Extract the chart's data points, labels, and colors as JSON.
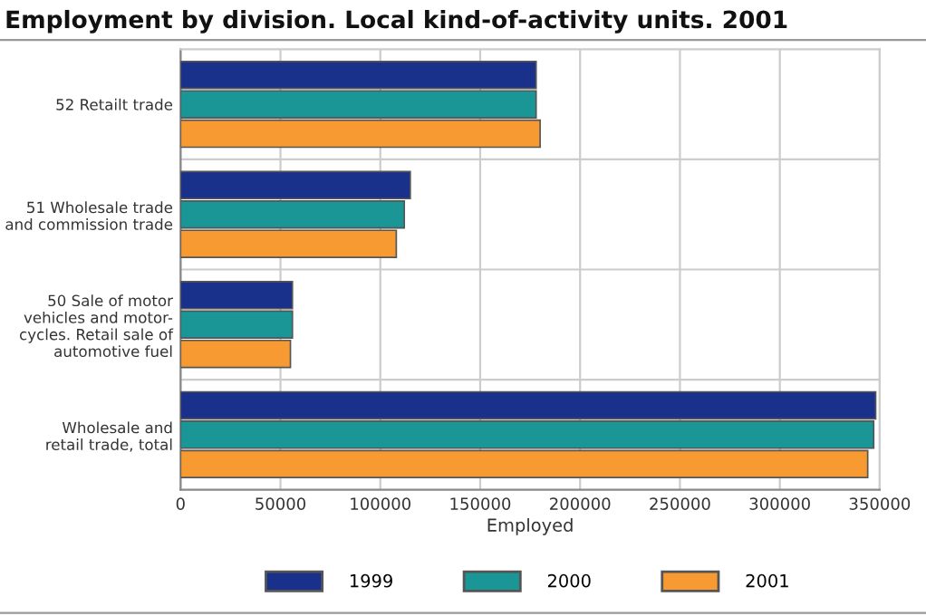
{
  "chart_data": {
    "type": "bar",
    "orientation": "horizontal",
    "title": "Employment by division. Local kind-of-activity units. 2001",
    "xlabel": "Employed",
    "categories": [
      "52 Retailt trade",
      "51 Wholesale trade\nand commission trade",
      "50 Sale of motor\nvehicles and motor-\ncycles. Retail sale of\nautomotive fuel",
      "Wholesale and\nretail trade, total"
    ],
    "series": [
      {
        "name": "1999",
        "color": "#1a318c",
        "values": [
          178000,
          115000,
          56000,
          348000
        ]
      },
      {
        "name": "2000",
        "color": "#1a9696",
        "values": [
          178000,
          112000,
          56000,
          347000
        ]
      },
      {
        "name": "2001",
        "color": "#f79a32",
        "values": [
          180000,
          108000,
          55000,
          344000
        ]
      }
    ],
    "xlim": [
      0,
      350000
    ],
    "xticks": [
      0,
      50000,
      100000,
      150000,
      200000,
      250000,
      300000,
      350000
    ],
    "grid": true,
    "legend": "bottom"
  }
}
